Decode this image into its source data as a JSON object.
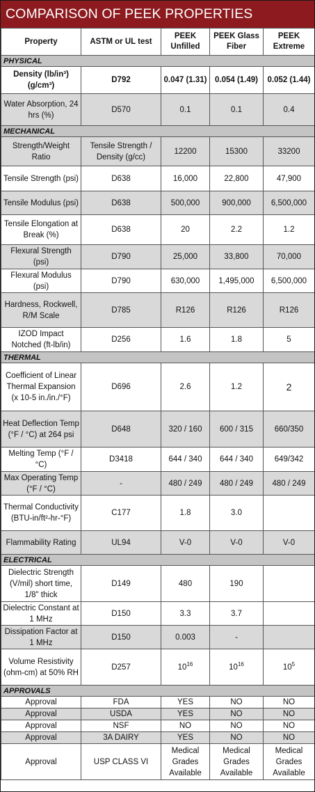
{
  "title": "COMPARISON OF PEEK PROPERTIES",
  "headers": {
    "property": "Property",
    "test": "ASTM or UL test",
    "unfilled": "PEEK Unfilled",
    "glass": "PEEK Glass Fiber",
    "extreme": "PEEK Extreme"
  },
  "sections": {
    "physical": "PHYSICAL",
    "mechanical": "MECHANICAL",
    "thermal": "THERMAL",
    "electrical": "ELECTRICAL",
    "approvals": "APPROVALS"
  },
  "rows": {
    "density": {
      "property": "Density (lb/in³) (g/cm³)",
      "test": "D792",
      "unfilled": "0.047 (1.31)",
      "glass": "0.054 (1.49)",
      "extreme": "0.052 (1.44)"
    },
    "water_absorption": {
      "property": "Water Absorption, 24 hrs (%)",
      "test": "D570",
      "unfilled": "0.1",
      "glass": "0.1",
      "extreme": "0.4"
    },
    "strength_weight": {
      "property": "Strength/Weight Ratio",
      "test": "Tensile Strength / Density (g/cc)",
      "unfilled": "12200",
      "glass": "15300",
      "extreme": "33200"
    },
    "tensile_strength": {
      "property": "Tensile Strength (psi)",
      "test": "D638",
      "unfilled": "16,000",
      "glass": "22,800",
      "extreme": "47,900"
    },
    "tensile_modulus": {
      "property": "Tensile Modulus (psi)",
      "test": "D638",
      "unfilled": "500,000",
      "glass": "900,000",
      "extreme": "6,500,000"
    },
    "tensile_elongation": {
      "property": "Tensile Elongation at Break (%)",
      "test": "D638",
      "unfilled": "20",
      "glass": "2.2",
      "extreme": "1.2"
    },
    "flexural_strength": {
      "property": "Flexural Strength (psi)",
      "test": "D790",
      "unfilled": "25,000",
      "glass": "33,800",
      "extreme": "70,000"
    },
    "flexural_modulus": {
      "property": "Flexural Modulus (psi)",
      "test": "D790",
      "unfilled": "630,000",
      "glass": "1,495,000",
      "extreme": "6,500,000"
    },
    "hardness": {
      "property": "Hardness, Rockwell, R/M Scale",
      "test": "D785",
      "unfilled": "R126",
      "glass": "R126",
      "extreme": "R126"
    },
    "izod": {
      "property": "IZOD Impact Notched (ft-lb/in)",
      "test": "D256",
      "unfilled": "1.6",
      "glass": "1.8",
      "extreme": "5"
    },
    "thermal_expansion": {
      "property": "Coefficient of Linear Thermal Expansion (x 10-5 in./in./°F)",
      "test": "D696",
      "unfilled": "2.6",
      "glass": "1.2",
      "extreme": "2"
    },
    "heat_deflection": {
      "property": "Heat Deflection Temp (°F / °C) at 264 psi",
      "test": "D648",
      "unfilled": "320 / 160",
      "glass": "600 / 315",
      "extreme": "660/350"
    },
    "melting_temp": {
      "property": "Melting Temp (°F / °C)",
      "test": "D3418",
      "unfilled": "644 / 340",
      "glass": "644 / 340",
      "extreme": "649/342"
    },
    "max_operating": {
      "property": "Max Operating Temp (°F / °C)",
      "test": "-",
      "unfilled": "480 / 249",
      "glass": "480 / 249",
      "extreme": "480 / 249"
    },
    "thermal_conductivity": {
      "property": "Thermal Conductivity (BTU-in/ft²-hr-°F)",
      "test": "C177",
      "unfilled": "1.8",
      "glass": "3.0",
      "extreme": ""
    },
    "flammability": {
      "property": "Flammability Rating",
      "test": "UL94",
      "unfilled": "V-0",
      "glass": "V-0",
      "extreme": "V-0"
    },
    "dielectric_strength": {
      "property": "Dielectric Strength (V/mil) short time, 1/8\" thick",
      "test": "D149",
      "unfilled": "480",
      "glass": "190",
      "extreme": ""
    },
    "dielectric_constant": {
      "property": "Dielectric Constant at 1 MHz",
      "test": "D150",
      "unfilled": "3.3",
      "glass": "3.7",
      "extreme": ""
    },
    "dissipation_factor": {
      "property": "Dissipation Factor at 1 MHz",
      "test": "D150",
      "unfilled": "0.003",
      "glass": "-",
      "extreme": ""
    },
    "volume_resistivity": {
      "property": "Volume Resistivity (ohm-cm) at 50% RH",
      "test": "D257",
      "unfilled_base": "10",
      "unfilled_exp": "16",
      "glass_base": "10",
      "glass_exp": "16",
      "extreme_base": "10",
      "extreme_exp": "5"
    },
    "approval_fda": {
      "property": "Approval",
      "test": "FDA",
      "unfilled": "YES",
      "glass": "NO",
      "extreme": "NO"
    },
    "approval_usda": {
      "property": "Approval",
      "test": "USDA",
      "unfilled": "YES",
      "glass": "NO",
      "extreme": "NO"
    },
    "approval_nsf": {
      "property": "Approval",
      "test": "NSF",
      "unfilled": "NO",
      "glass": "NO",
      "extreme": "NO"
    },
    "approval_3a": {
      "property": "Approval",
      "test": "3A DAIRY",
      "unfilled": "YES",
      "glass": "NO",
      "extreme": "NO"
    },
    "approval_usp": {
      "property": "Approval",
      "test": "USP CLASS VI",
      "unfilled": "Medical Grades Available",
      "glass": "Medical Grades Available",
      "extreme": "Medical Grades Available"
    }
  },
  "colors": {
    "banner": "#8c1a1f",
    "section": "#c4c4c4",
    "alt_row": "#d9d9d9"
  }
}
